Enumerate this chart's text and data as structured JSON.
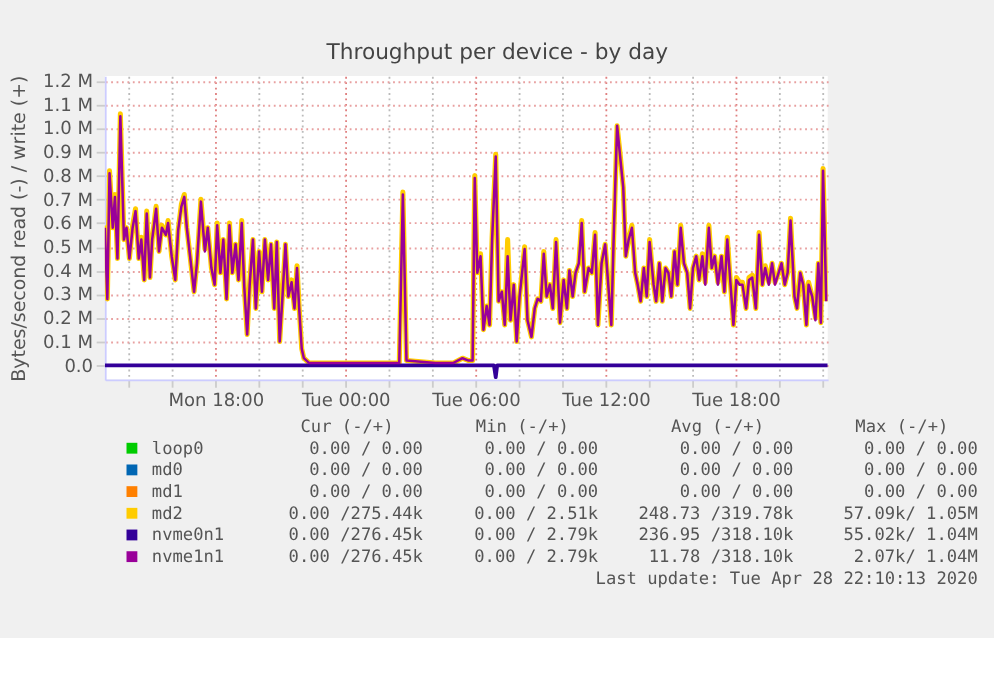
{
  "chart_data": {
    "type": "line",
    "title": "Throughput per device - by day",
    "ylabel": "Bytes/second read (-) / write (+)",
    "xlim": [
      "2020-04-27T12:54",
      "2020-04-28T22:15"
    ],
    "ylim": [
      -60000,
      1220000
    ],
    "xticks": [
      {
        "value": "2020-04-27T14:00",
        "label": null
      },
      {
        "value": "2020-04-27T16:00",
        "label": null
      },
      {
        "value": "2020-04-27T18:00",
        "label": "Mon 18:00"
      },
      {
        "value": "2020-04-27T20:00",
        "label": null
      },
      {
        "value": "2020-04-27T22:00",
        "label": null
      },
      {
        "value": "2020-04-28T00:00",
        "label": "Tue 00:00"
      },
      {
        "value": "2020-04-28T02:00",
        "label": null
      },
      {
        "value": "2020-04-28T04:00",
        "label": null
      },
      {
        "value": "2020-04-28T06:00",
        "label": "Tue 06:00"
      },
      {
        "value": "2020-04-28T08:00",
        "label": null
      },
      {
        "value": "2020-04-28T10:00",
        "label": null
      },
      {
        "value": "2020-04-28T12:00",
        "label": "Tue 12:00"
      },
      {
        "value": "2020-04-28T14:00",
        "label": null
      },
      {
        "value": "2020-04-28T16:00",
        "label": null
      },
      {
        "value": "2020-04-28T18:00",
        "label": "Tue 18:00"
      },
      {
        "value": "2020-04-28T20:00",
        "label": null
      },
      {
        "value": "2020-04-28T22:00",
        "label": null
      }
    ],
    "yticks": [
      {
        "value": 0,
        "label": "0.0"
      },
      {
        "value": 100000,
        "label": "0.1 M"
      },
      {
        "value": 200000,
        "label": "0.2 M"
      },
      {
        "value": 300000,
        "label": "0.3 M"
      },
      {
        "value": 400000,
        "label": "0.4 M"
      },
      {
        "value": 500000,
        "label": "0.5 M"
      },
      {
        "value": 600000,
        "label": "0.6 M"
      },
      {
        "value": 700000,
        "label": "0.7 M"
      },
      {
        "value": 800000,
        "label": "0.8 M"
      },
      {
        "value": 900000,
        "label": "0.9 M"
      },
      {
        "value": 1000000,
        "label": "1.0 M"
      },
      {
        "value": 1100000,
        "label": "1.1 M"
      },
      {
        "value": 1200000,
        "label": "1.2 M"
      }
    ],
    "grid": true,
    "legend": "bottom",
    "line_style": "solid",
    "x": [
      "2020-04-27T12:54",
      "2020-04-27T13:01",
      "2020-04-27T13:07",
      "2020-04-27T13:16",
      "2020-04-27T13:22",
      "2020-04-27T13:29",
      "2020-04-27T13:37",
      "2020-04-27T13:47",
      "2020-04-27T13:54",
      "2020-04-27T14:02",
      "2020-04-27T14:11",
      "2020-04-27T14:19",
      "2020-04-27T14:28",
      "2020-04-27T14:35",
      "2020-04-27T14:43",
      "2020-04-27T14:50",
      "2020-04-27T14:59",
      "2020-04-27T15:05",
      "2020-04-27T15:16",
      "2020-04-27T15:24",
      "2020-04-27T15:32",
      "2020-04-27T15:43",
      "2020-04-27T15:49",
      "2020-04-27T15:59",
      "2020-04-27T16:09",
      "2020-04-27T16:17",
      "2020-04-27T16:26",
      "2020-04-27T16:34",
      "2020-04-27T16:41",
      "2020-04-27T16:50",
      "2020-04-27T17:01",
      "2020-04-27T17:09",
      "2020-04-27T17:20",
      "2020-04-27T17:31",
      "2020-04-27T17:39",
      "2020-04-27T17:49",
      "2020-04-27T17:58",
      "2020-04-27T18:05",
      "2020-04-27T18:14",
      "2020-04-27T18:22",
      "2020-04-27T18:31",
      "2020-04-27T18:39",
      "2020-04-27T18:47",
      "2020-04-27T18:56",
      "2020-04-27T19:04",
      "2020-04-27T19:13",
      "2020-04-27T19:20",
      "2020-04-27T19:28",
      "2020-04-27T19:35",
      "2020-04-27T19:44",
      "2020-04-27T19:52",
      "2020-04-27T20:01",
      "2020-04-27T20:09",
      "2020-04-27T20:17",
      "2020-04-27T20:26",
      "2020-04-27T20:34",
      "2020-04-27T20:43",
      "2020-04-27T20:50",
      "2020-04-27T20:58",
      "2020-04-27T21:05",
      "2020-04-27T21:14",
      "2020-04-27T21:22",
      "2020-04-27T21:31",
      "2020-04-27T21:39",
      "2020-04-27T21:46",
      "2020-04-27T21:52",
      "2020-04-27T21:59",
      "2020-04-27T22:05",
      "2020-04-27T22:19",
      "2020-04-27T23:59",
      "2020-04-28T02:29",
      "2020-04-28T02:39",
      "2020-04-28T02:49",
      "2020-04-28T04:09",
      "2020-04-28T04:59",
      "2020-04-28T05:24",
      "2020-04-28T05:41",
      "2020-04-28T05:52",
      "2020-04-28T05:58",
      "2020-04-28T06:05",
      "2020-04-28T06:14",
      "2020-04-28T06:22",
      "2020-04-28T06:31",
      "2020-04-28T06:39",
      "2020-04-28T06:46",
      "2020-04-28T06:56",
      "2020-04-28T07:04",
      "2020-04-28T07:13",
      "2020-04-28T07:21",
      "2020-04-28T07:29",
      "2020-04-28T07:37",
      "2020-04-28T07:46",
      "2020-04-28T07:54",
      "2020-04-28T08:02",
      "2020-04-28T08:16",
      "2020-04-28T08:24",
      "2020-04-28T08:35",
      "2020-04-28T08:44",
      "2020-04-28T08:52",
      "2020-04-28T09:01",
      "2020-04-28T09:09",
      "2020-04-28T09:17",
      "2020-04-28T09:26",
      "2020-04-28T09:34",
      "2020-04-28T09:43",
      "2020-04-28T09:54",
      "2020-04-28T10:04",
      "2020-04-28T10:13",
      "2020-04-28T10:20",
      "2020-04-28T10:29",
      "2020-04-28T10:37",
      "2020-04-28T10:46",
      "2020-04-28T10:54",
      "2020-04-28T11:02",
      "2020-04-28T11:13",
      "2020-04-28T11:22",
      "2020-04-28T11:31",
      "2020-04-28T11:39",
      "2020-04-28T11:49",
      "2020-04-28T11:59",
      "2020-04-28T12:05",
      "2020-04-28T12:16",
      "2020-04-28T12:22",
      "2020-04-28T12:32",
      "2020-04-28T12:41",
      "2020-04-28T12:49",
      "2020-04-28T12:56",
      "2020-04-28T13:04",
      "2020-04-28T13:13",
      "2020-04-28T13:22",
      "2020-04-28T13:29",
      "2020-04-28T13:37",
      "2020-04-28T13:46",
      "2020-04-28T13:54",
      "2020-04-28T14:02",
      "2020-04-28T14:13",
      "2020-04-28T14:20",
      "2020-04-28T14:29",
      "2020-04-28T14:37",
      "2020-04-28T14:46",
      "2020-04-28T14:54",
      "2020-04-28T15:02",
      "2020-04-28T15:11",
      "2020-04-28T15:19",
      "2020-04-28T15:28",
      "2020-04-28T15:37",
      "2020-04-28T15:46",
      "2020-04-28T15:54",
      "2020-04-28T16:02",
      "2020-04-28T16:11",
      "2020-04-28T16:19",
      "2020-04-28T16:28",
      "2020-04-28T16:36",
      "2020-04-28T16:46",
      "2020-04-28T16:54",
      "2020-04-28T17:02",
      "2020-04-28T17:11",
      "2020-04-28T17:21",
      "2020-04-28T17:29",
      "2020-04-28T17:37",
      "2020-04-28T17:46",
      "2020-04-28T17:54",
      "2020-04-28T18:02",
      "2020-04-28T18:11",
      "2020-04-28T18:19",
      "2020-04-28T18:29",
      "2020-04-28T18:37",
      "2020-04-28T18:46",
      "2020-04-28T18:56",
      "2020-04-28T19:05",
      "2020-04-28T19:14",
      "2020-04-28T19:22",
      "2020-04-28T19:32",
      "2020-04-28T19:41",
      "2020-04-28T19:49",
      "2020-04-28T19:59",
      "2020-04-28T20:07",
      "2020-04-28T20:16",
      "2020-04-28T20:24",
      "2020-04-28T20:32",
      "2020-04-28T20:43",
      "2020-04-28T20:50",
      "2020-04-28T20:59",
      "2020-04-28T21:07",
      "2020-04-28T21:16",
      "2020-04-28T21:22",
      "2020-04-28T21:32",
      "2020-04-28T21:41",
      "2020-04-28T21:49",
      "2020-04-28T21:56",
      "2020-04-28T22:02",
      "2020-04-28T22:11"
    ],
    "series": [
      {
        "name": "loop0",
        "color": "#00cc00",
        "values": [
          null,
          null,
          null,
          null,
          null,
          null,
          null,
          null,
          null,
          null,
          null,
          null,
          null,
          null,
          null,
          null,
          null,
          null,
          null,
          null,
          null,
          null,
          null,
          null,
          null,
          null,
          null,
          null,
          null,
          null,
          null,
          null,
          null,
          null,
          null,
          null,
          null,
          null,
          null,
          null,
          null,
          null,
          null,
          null,
          null,
          null,
          null,
          null,
          null,
          null,
          null,
          null,
          null,
          null,
          null,
          null,
          null,
          null,
          null,
          null,
          null,
          null,
          null,
          null,
          null,
          null,
          null,
          null,
          null,
          null,
          null,
          null,
          null,
          null,
          null,
          null,
          null,
          null,
          null,
          null,
          null,
          null,
          null,
          null,
          null,
          null,
          null,
          null,
          null,
          null,
          null,
          null,
          null,
          null,
          null,
          null,
          null,
          null,
          null,
          null,
          null,
          null,
          null,
          null,
          null,
          null,
          null,
          null,
          null,
          null,
          null,
          null,
          null,
          null,
          null,
          null,
          null,
          null,
          null,
          null,
          null,
          null,
          null,
          null,
          null,
          null,
          null,
          null,
          null,
          null,
          null,
          null,
          null,
          null,
          null,
          null,
          null,
          null,
          null,
          null,
          null,
          null,
          null,
          null,
          null,
          null,
          null,
          null,
          null,
          null,
          null,
          null,
          null,
          null,
          null,
          null,
          null,
          null,
          null,
          null,
          null,
          null,
          null,
          null,
          null,
          null,
          null,
          null,
          null,
          null,
          null,
          null,
          null,
          null,
          null,
          null,
          null,
          null,
          null,
          null,
          null,
          null,
          null,
          null,
          null,
          null,
          null,
          null,
          null,
          null,
          null,
          null
        ]
      },
      {
        "name": "md0",
        "color": "#0066b3",
        "values": [
          null,
          null,
          null,
          null,
          null,
          null,
          null,
          null,
          null,
          null,
          null,
          null,
          null,
          null,
          null,
          null,
          null,
          null,
          null,
          null,
          null,
          null,
          null,
          null,
          null,
          null,
          null,
          null,
          null,
          null,
          null,
          null,
          null,
          null,
          null,
          null,
          null,
          null,
          null,
          null,
          null,
          null,
          null,
          null,
          null,
          null,
          null,
          null,
          null,
          null,
          null,
          null,
          null,
          null,
          null,
          null,
          null,
          null,
          null,
          null,
          null,
          null,
          null,
          null,
          null,
          null,
          null,
          null,
          null,
          null,
          null,
          null,
          null,
          null,
          null,
          null,
          null,
          null,
          null,
          null,
          null,
          null,
          null,
          null,
          null,
          null,
          null,
          null,
          null,
          null,
          null,
          null,
          null,
          null,
          null,
          null,
          null,
          null,
          null,
          null,
          null,
          null,
          null,
          null,
          null,
          null,
          null,
          null,
          null,
          null,
          null,
          null,
          null,
          null,
          null,
          null,
          null,
          null,
          null,
          null,
          null,
          null,
          null,
          null,
          null,
          null,
          null,
          null,
          null,
          null,
          null,
          null,
          null,
          null,
          null,
          null,
          null,
          null,
          null,
          null,
          null,
          null,
          null,
          null,
          null,
          null,
          null,
          null,
          null,
          null,
          null,
          null,
          null,
          null,
          null,
          null,
          null,
          null,
          null,
          null,
          null,
          null,
          null,
          null,
          null,
          null,
          null,
          null,
          null,
          null,
          null,
          null,
          null,
          null,
          null,
          null,
          null,
          null,
          null,
          null,
          null,
          null,
          null,
          null,
          null,
          null,
          null,
          null,
          null,
          null,
          null,
          null
        ]
      },
      {
        "name": "md1",
        "color": "#ff8000",
        "values": [
          null,
          null,
          null,
          null,
          null,
          null,
          null,
          null,
          null,
          null,
          null,
          null,
          null,
          null,
          null,
          null,
          null,
          null,
          null,
          null,
          null,
          null,
          null,
          null,
          null,
          null,
          null,
          null,
          null,
          null,
          null,
          null,
          null,
          null,
          null,
          null,
          null,
          null,
          null,
          null,
          null,
          null,
          null,
          null,
          null,
          null,
          null,
          null,
          null,
          null,
          null,
          null,
          null,
          null,
          null,
          null,
          null,
          null,
          null,
          null,
          null,
          null,
          null,
          null,
          null,
          null,
          null,
          null,
          null,
          null,
          null,
          null,
          null,
          null,
          null,
          null,
          null,
          null,
          null,
          null,
          null,
          null,
          null,
          null,
          null,
          null,
          null,
          null,
          null,
          null,
          null,
          null,
          null,
          null,
          null,
          null,
          null,
          null,
          null,
          null,
          null,
          null,
          null,
          null,
          null,
          null,
          null,
          null,
          null,
          null,
          null,
          null,
          null,
          null,
          null,
          null,
          null,
          null,
          null,
          null,
          null,
          null,
          null,
          null,
          null,
          null,
          null,
          null,
          null,
          null,
          null,
          null,
          null,
          null,
          null,
          null,
          null,
          null,
          null,
          null,
          null,
          null,
          null,
          null,
          null,
          null,
          null,
          null,
          null,
          null,
          null,
          null,
          null,
          null,
          null,
          null,
          null,
          null,
          null,
          null,
          null,
          null,
          null,
          null,
          null,
          null,
          null,
          null,
          null,
          null,
          null,
          null,
          null,
          null,
          null,
          null,
          null,
          null,
          null,
          null,
          null,
          null,
          null,
          null,
          null,
          null,
          null,
          null,
          null,
          null,
          null,
          null
        ]
      },
      {
        "name": "md2",
        "color": "#ffcc00",
        "values": [
          590000,
          280000,
          820000,
          580000,
          720000,
          450000,
          1060000,
          530000,
          580000,
          450000,
          590000,
          660000,
          450000,
          540000,
          360000,
          650000,
          370000,
          530000,
          670000,
          480000,
          590000,
          550000,
          610000,
          460000,
          360000,
          570000,
          680000,
          720000,
          580000,
          460000,
          310000,
          430000,
          700000,
          490000,
          580000,
          410000,
          340000,
          600000,
          390000,
          530000,
          280000,
          600000,
          390000,
          510000,
          360000,
          610000,
          330000,
          130000,
          350000,
          530000,
          240000,
          480000,
          310000,
          530000,
          360000,
          510000,
          240000,
          520000,
          100000,
          280000,
          510000,
          290000,
          360000,
          240000,
          420000,
          240000,
          70000,
          30000,
          10000,
          10000,
          10000,
          730000,
          20000,
          10000,
          10000,
          30000,
          20000,
          20000,
          800000,
          390000,
          470000,
          150000,
          250000,
          170000,
          540000,
          890000,
          270000,
          310000,
          170000,
          530000,
          190000,
          340000,
          100000,
          290000,
          500000,
          190000,
          120000,
          240000,
          280000,
          270000,
          480000,
          290000,
          340000,
          240000,
          530000,
          180000,
          360000,
          240000,
          400000,
          290000,
          390000,
          430000,
          610000,
          310000,
          410000,
          390000,
          560000,
          170000,
          430000,
          510000,
          390000,
          170000,
          510000,
          1010000,
          880000,
          750000,
          460000,
          530000,
          590000,
          390000,
          340000,
          270000,
          410000,
          290000,
          530000,
          340000,
          270000,
          430000,
          270000,
          410000,
          390000,
          290000,
          480000,
          340000,
          590000,
          430000,
          390000,
          240000,
          410000,
          460000,
          360000,
          470000,
          350000,
          590000,
          410000,
          460000,
          350000,
          460000,
          310000,
          540000,
          340000,
          170000,
          370000,
          350000,
          350000,
          240000,
          370000,
          380000,
          240000,
          560000,
          340000,
          420000,
          350000,
          430000,
          350000,
          390000,
          430000,
          340000,
          390000,
          620000,
          290000,
          240000,
          390000,
          340000,
          170000,
          350000,
          290000,
          200000,
          430000,
          180000,
          830000,
          270000
        ]
      },
      {
        "name": "nvme0n1",
        "color": "#330099",
        "x": [
          "2020-04-27T12:54",
          "2020-04-28T06:51",
          "2020-04-28T06:56",
          "2020-04-28T07:00",
          "2020-04-28T22:15"
        ],
        "values": [
          0,
          0,
          -50000,
          0,
          0
        ]
      },
      {
        "name": "nvme1n1",
        "color": "#990099",
        "values": [
          580000,
          280000,
          810000,
          580000,
          710000,
          450000,
          1050000,
          530000,
          580000,
          450000,
          580000,
          650000,
          450000,
          530000,
          360000,
          640000,
          370000,
          530000,
          660000,
          480000,
          580000,
          550000,
          600000,
          460000,
          360000,
          570000,
          670000,
          710000,
          580000,
          460000,
          310000,
          430000,
          690000,
          480000,
          580000,
          410000,
          340000,
          590000,
          390000,
          530000,
          280000,
          590000,
          390000,
          510000,
          360000,
          600000,
          330000,
          130000,
          340000,
          530000,
          240000,
          480000,
          310000,
          530000,
          360000,
          510000,
          240000,
          520000,
          100000,
          270000,
          510000,
          290000,
          350000,
          240000,
          410000,
          240000,
          70000,
          30000,
          10000,
          10000,
          10000,
          720000,
          20000,
          10000,
          10000,
          30000,
          20000,
          20000,
          790000,
          390000,
          460000,
          150000,
          250000,
          170000,
          530000,
          880000,
          270000,
          310000,
          170000,
          460000,
          190000,
          340000,
          100000,
          290000,
          490000,
          190000,
          120000,
          240000,
          280000,
          270000,
          470000,
          290000,
          340000,
          240000,
          520000,
          180000,
          360000,
          240000,
          400000,
          290000,
          390000,
          430000,
          600000,
          310000,
          410000,
          390000,
          550000,
          170000,
          430000,
          510000,
          390000,
          170000,
          510000,
          1010000,
          870000,
          750000,
          460000,
          530000,
          580000,
          390000,
          340000,
          270000,
          410000,
          290000,
          520000,
          340000,
          270000,
          430000,
          270000,
          410000,
          390000,
          290000,
          480000,
          340000,
          580000,
          430000,
          390000,
          240000,
          410000,
          460000,
          360000,
          460000,
          340000,
          580000,
          410000,
          460000,
          340000,
          460000,
          310000,
          530000,
          340000,
          170000,
          360000,
          340000,
          340000,
          240000,
          360000,
          370000,
          240000,
          550000,
          340000,
          410000,
          340000,
          430000,
          340000,
          390000,
          430000,
          340000,
          390000,
          610000,
          290000,
          240000,
          390000,
          340000,
          170000,
          340000,
          290000,
          190000,
          430000,
          180000,
          820000,
          270000
        ]
      }
    ],
    "annotations": [
      "Cur (-/+)",
      "Min (-/+)",
      "Avg (-/+)",
      "Max (-/+)",
      "0.00 /  0.00",
      "0.00 /  0.00",
      "0.00 /  0.00",
      "0.00 /  0.00",
      "0.00 /  0.00",
      "0.00 /  0.00",
      "0.00 /  0.00",
      "0.00 /  0.00",
      "0.00 /  0.00",
      "0.00 /  0.00",
      "0.00 /  0.00",
      "0.00 /  0.00",
      "0.00 /275.44k",
      "0.00 /  2.51k",
      "248.73 /319.78k",
      "57.09k/  1.05M",
      "0.00 /276.45k",
      "0.00 /  2.79k",
      "236.95 /318.10k",
      "55.02k/  1.04M",
      "0.00 /276.45k",
      "0.00 /  2.79k",
      "11.78 /318.10k",
      "2.07k/  1.04M",
      "Last update: Tue Apr 28 22:10:13 2020"
    ]
  }
}
